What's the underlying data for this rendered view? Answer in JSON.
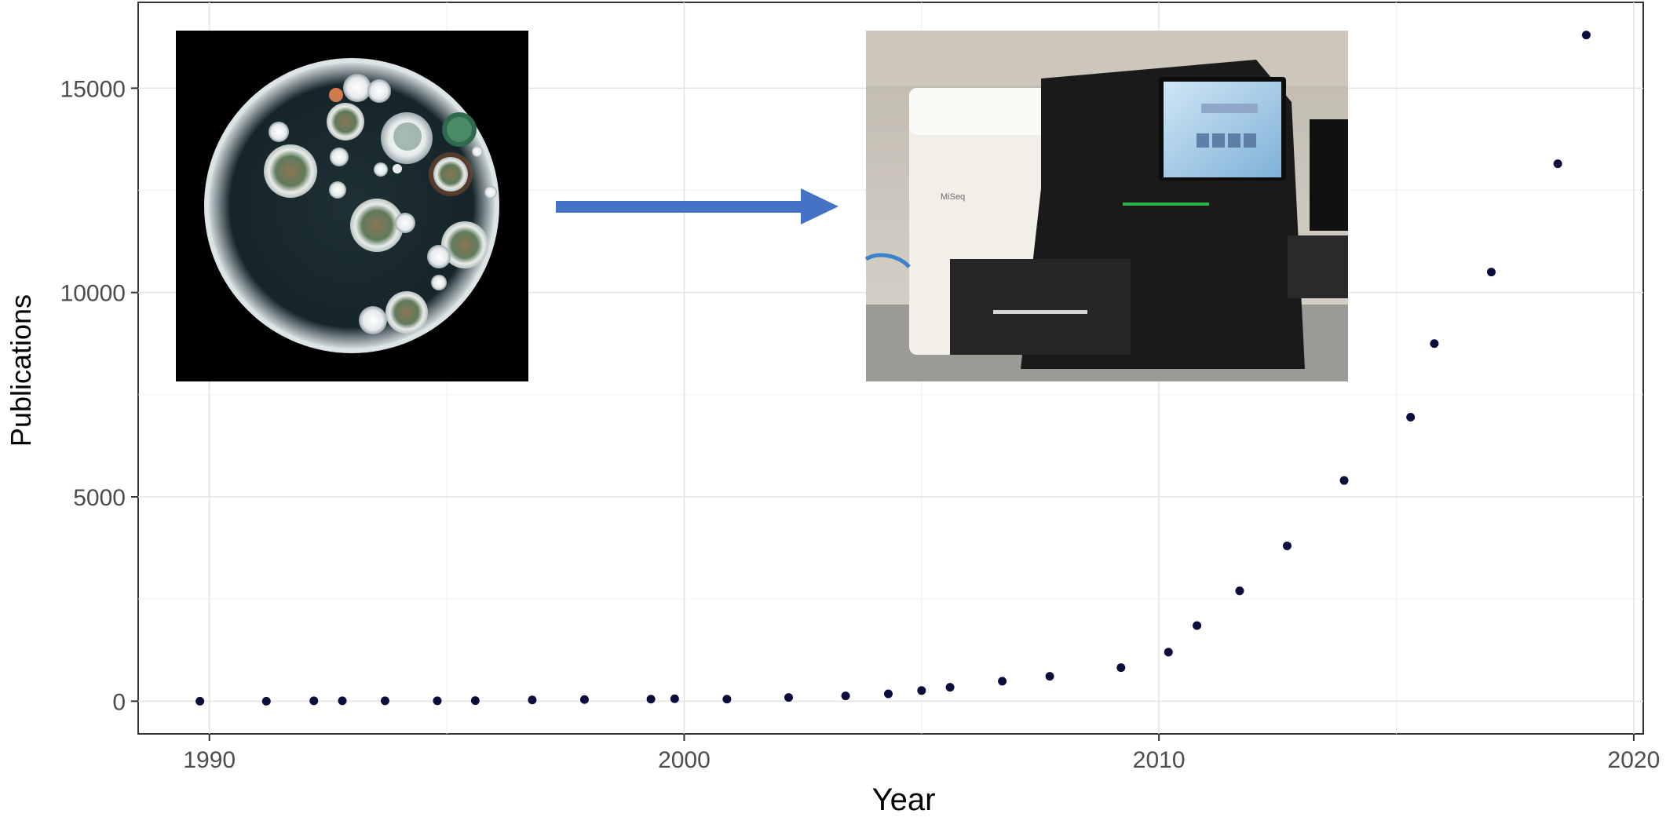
{
  "chart_data": {
    "type": "scatter",
    "xlabel": "Year",
    "ylabel": "Publications",
    "xlim": [
      1988.5,
      2020.2
    ],
    "ylim": [
      -800,
      17100
    ],
    "x_ticks": [
      {
        "value": 1990,
        "label": "1990"
      },
      {
        "value": 2000,
        "label": "2000"
      },
      {
        "value": 2010,
        "label": "2010"
      },
      {
        "value": 2020,
        "label": "2020"
      }
    ],
    "y_ticks": [
      {
        "value": 0,
        "label": "0"
      },
      {
        "value": 5000,
        "label": "5000"
      },
      {
        "value": 10000,
        "label": "10000"
      },
      {
        "value": 15000,
        "label": "15000"
      }
    ],
    "grid": true,
    "legend": "none",
    "marker_color": "#0d0d3d",
    "series": [
      {
        "points": [
          {
            "x": 1989.8,
            "y": 0
          },
          {
            "x": 1991.2,
            "y": 0
          },
          {
            "x": 1992.2,
            "y": 10
          },
          {
            "x": 1992.8,
            "y": 10
          },
          {
            "x": 1993.7,
            "y": 10
          },
          {
            "x": 1994.8,
            "y": 10
          },
          {
            "x": 1995.6,
            "y": 15
          },
          {
            "x": 1996.8,
            "y": 30
          },
          {
            "x": 1997.9,
            "y": 40
          },
          {
            "x": 1999.3,
            "y": 50
          },
          {
            "x": 1999.8,
            "y": 60
          },
          {
            "x": 2000.9,
            "y": 50
          },
          {
            "x": 2002.2,
            "y": 90
          },
          {
            "x": 2003.4,
            "y": 130
          },
          {
            "x": 2004.3,
            "y": 180
          },
          {
            "x": 2005.0,
            "y": 260
          },
          {
            "x": 2005.6,
            "y": 340
          },
          {
            "x": 2006.7,
            "y": 490
          },
          {
            "x": 2007.7,
            "y": 610
          },
          {
            "x": 2009.2,
            "y": 820
          },
          {
            "x": 2010.2,
            "y": 1200
          },
          {
            "x": 2010.8,
            "y": 1850
          },
          {
            "x": 2011.7,
            "y": 2700
          },
          {
            "x": 2012.7,
            "y": 3800
          },
          {
            "x": 2013.9,
            "y": 5400
          },
          {
            "x": 2015.3,
            "y": 6950
          },
          {
            "x": 2015.8,
            "y": 8750
          },
          {
            "x": 2017.0,
            "y": 10500
          },
          {
            "x": 2018.4,
            "y": 13150
          },
          {
            "x": 2019.0,
            "y": 16300
          }
        ]
      }
    ]
  },
  "images": {
    "petri_dish_photo": {
      "colors": [
        "#000000",
        "#1d2c30",
        "#dfe4e6",
        "#5f7a5a",
        "#8a7656"
      ]
    },
    "sequencer_photo": {
      "colors": [
        "#d8d4cc",
        "#f1efe8",
        "#1a1a1a",
        "#3a82c9",
        "#2bb34a"
      ]
    },
    "arrow_color": "#4472c4"
  }
}
